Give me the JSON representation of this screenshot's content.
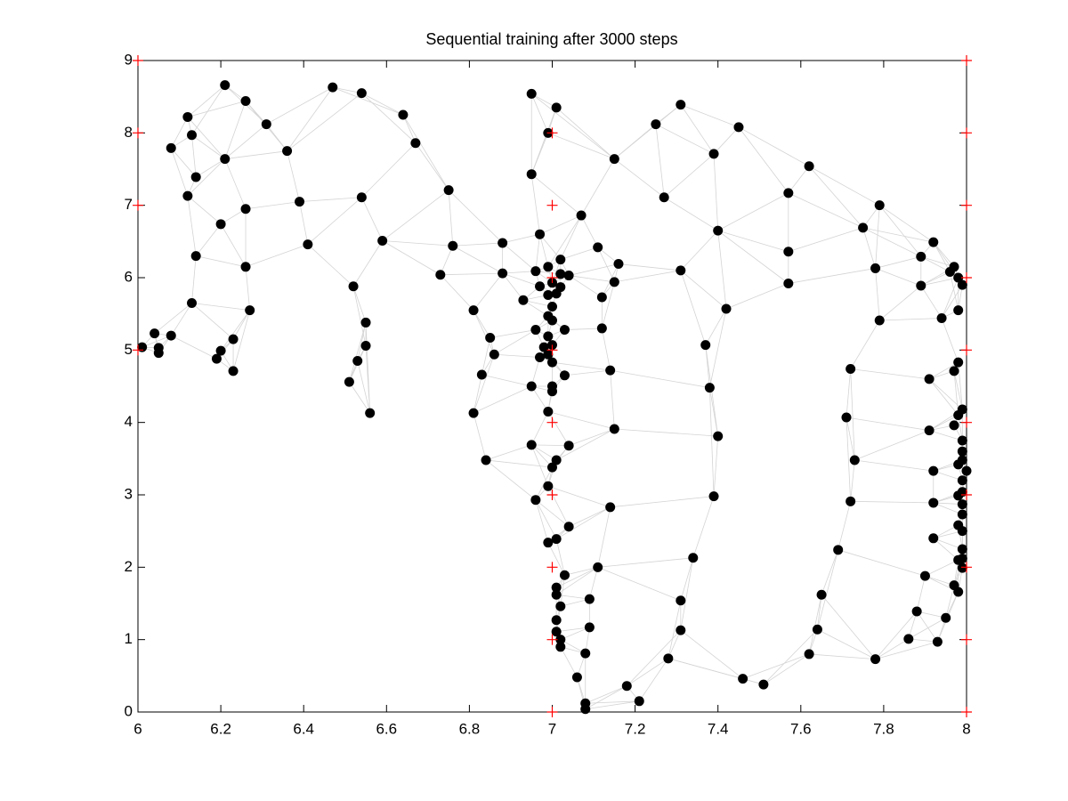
{
  "chart_data": {
    "type": "scatter",
    "title": "Sequential training after 3000 steps",
    "xlim": [
      6,
      8
    ],
    "ylim": [
      0,
      9
    ],
    "xticks": [
      6,
      6.2,
      6.4,
      6.6,
      6.8,
      7,
      7.2,
      7.4,
      7.6,
      7.8,
      8
    ],
    "yticks": [
      0,
      1,
      2,
      3,
      4,
      5,
      6,
      7,
      8,
      9
    ],
    "series": [
      {
        "color": "#000000",
        "marker": "o",
        "x": [
          6.21,
          6.47,
          6.54,
          6.26,
          6.95,
          7.01,
          7.31,
          6.12,
          6.31,
          6.64,
          6.13,
          6.99,
          7.25,
          7.45,
          6.67,
          6.08,
          6.36,
          6.21,
          7.15,
          7.39,
          7.62,
          6.14,
          6.95,
          6.75,
          6.12,
          6.54,
          7.27,
          7.57,
          6.39,
          6.26,
          7.79,
          7.07,
          6.2,
          7.4,
          7.75,
          6.97,
          7.92,
          6.59,
          6.41,
          6.76,
          6.88,
          7.11,
          7.57,
          6.14,
          7.89,
          7.02,
          7.16,
          6.26,
          6.99,
          7.78,
          7.97,
          7.31,
          7.96,
          6.96,
          6.88,
          6.73,
          7.04,
          7.02,
          7.0,
          7.98,
          7.89,
          7.99,
          7.15,
          7.57,
          6.52,
          6.97,
          7.02,
          7.01,
          6.99,
          7.12,
          6.93,
          6.13,
          7.0,
          7.42,
          6.81,
          6.27,
          7.98,
          6.99,
          7.94,
          7.79,
          6.55,
          7.0,
          7.12,
          6.04,
          6.96,
          7.03,
          6.08,
          6.23,
          6.85,
          6.99,
          7.0,
          6.55,
          7.37,
          6.98,
          6.01,
          6.05,
          6.2,
          6.86,
          6.05,
          6.99,
          6.19,
          6.97,
          6.53,
          7.98,
          7.0,
          7.72,
          7.14,
          6.23,
          7.97,
          6.83,
          7.03,
          7.91,
          6.51,
          6.95,
          7.0,
          7.0,
          7.38,
          6.56,
          6.81,
          6.99,
          7.99,
          7.98,
          7.71,
          7.97,
          7.91,
          7.15,
          7.4,
          7.99,
          7.99,
          7.99,
          6.95,
          7.04,
          6.84,
          7.01,
          7.73,
          7.0,
          7.98,
          8.0,
          7.92,
          7.99,
          6.99,
          7.99,
          7.39,
          7.98,
          6.96,
          7.72,
          7.92,
          7.99,
          7.99,
          7.14,
          7.98,
          7.04,
          7.99,
          7.01,
          7.92,
          6.99,
          7.99,
          7.69,
          7.34,
          7.98,
          7.99,
          7.99,
          7.11,
          7.03,
          7.9,
          7.01,
          7.97,
          7.98,
          7.01,
          7.65,
          7.09,
          7.31,
          7.02,
          7.88,
          7.01,
          7.95,
          7.64,
          7.09,
          7.31,
          7.01,
          7.02,
          7.86,
          7.93,
          7.02,
          7.08,
          7.62,
          7.28,
          7.78,
          7.06,
          7.46,
          7.51,
          7.18,
          7.08,
          7.21,
          7.08
        ],
        "values": [
          8.66,
          8.63,
          8.55,
          8.44,
          8.54,
          8.35,
          8.39,
          8.22,
          8.12,
          8.25,
          7.97,
          8.0,
          8.12,
          8.08,
          7.86,
          7.79,
          7.75,
          7.64,
          7.64,
          7.71,
          7.54,
          7.39,
          7.43,
          7.21,
          7.13,
          7.11,
          7.11,
          7.17,
          7.05,
          6.95,
          7.0,
          6.86,
          6.74,
          6.65,
          6.69,
          6.6,
          6.49,
          6.51,
          6.46,
          6.44,
          6.48,
          6.42,
          6.36,
          6.3,
          6.29,
          6.25,
          6.19,
          6.15,
          6.15,
          6.13,
          6.15,
          6.1,
          6.08,
          6.09,
          6.06,
          6.04,
          6.03,
          6.05,
          5.93,
          6.0,
          5.89,
          5.9,
          5.94,
          5.92,
          5.88,
          5.88,
          5.87,
          5.78,
          5.76,
          5.73,
          5.69,
          5.65,
          5.6,
          5.57,
          5.55,
          5.55,
          5.55,
          5.47,
          5.44,
          5.41,
          5.38,
          5.41,
          5.3,
          5.23,
          5.28,
          5.28,
          5.2,
          5.15,
          5.17,
          5.19,
          5.07,
          5.06,
          5.07,
          5.04,
          5.04,
          5.03,
          4.99,
          4.94,
          4.96,
          4.94,
          4.88,
          4.9,
          4.85,
          4.83,
          4.83,
          4.74,
          4.72,
          4.71,
          4.71,
          4.66,
          4.65,
          4.6,
          4.56,
          4.5,
          4.5,
          4.43,
          4.48,
          4.13,
          4.13,
          4.15,
          4.18,
          4.1,
          4.07,
          3.96,
          3.89,
          3.91,
          3.81,
          3.75,
          3.6,
          3.48,
          3.69,
          3.68,
          3.48,
          3.48,
          3.48,
          3.38,
          3.42,
          3.33,
          3.33,
          3.2,
          3.12,
          3.04,
          2.98,
          2.99,
          2.93,
          2.91,
          2.89,
          2.87,
          2.73,
          2.83,
          2.58,
          2.56,
          2.5,
          2.39,
          2.4,
          2.34,
          2.25,
          2.24,
          2.13,
          2.1,
          2.12,
          1.99,
          2.0,
          1.89,
          1.88,
          1.72,
          1.75,
          1.66,
          1.62,
          1.62,
          1.56,
          1.54,
          1.46,
          1.39,
          1.27,
          1.3,
          1.14,
          1.17,
          1.13,
          1.11,
          1.0,
          1.01,
          0.97,
          0.9,
          0.81,
          0.8,
          0.74,
          0.73,
          0.48,
          0.46,
          0.38,
          0.36,
          0.12,
          0.15,
          0.04
        ]
      },
      {
        "color": "#ff0000",
        "marker": "+",
        "x": [
          6,
          6,
          6,
          6,
          7,
          7,
          7,
          7,
          7,
          7,
          7,
          7,
          7,
          8,
          8,
          8,
          8,
          8,
          8,
          8,
          8,
          8,
          8
        ],
        "values": [
          5,
          7,
          8,
          9,
          0,
          1,
          2,
          3,
          4,
          5,
          6,
          7,
          8,
          0,
          1,
          2,
          3,
          4,
          5,
          6,
          7,
          8,
          9
        ]
      }
    ]
  }
}
